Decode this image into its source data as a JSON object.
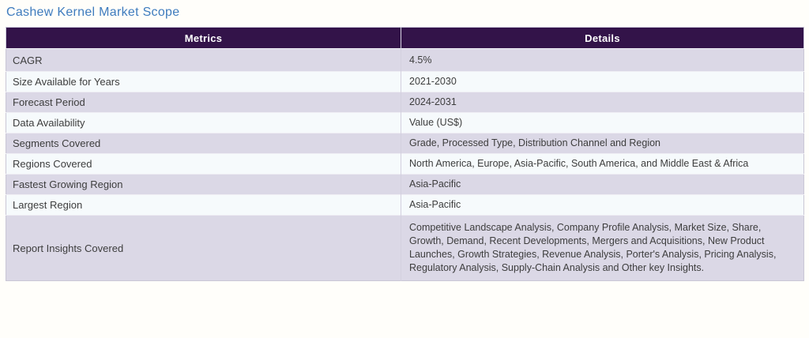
{
  "page": {
    "title": "Cashew Kernel Market Scope"
  },
  "colors": {
    "title_text": "#3f7cbe",
    "header_bg": "#331349",
    "header_text": "#ffffff",
    "row_alt_bg": "#dbd8e6",
    "row_bg": "#f6fafc",
    "cell_text": "#3d3d3d"
  },
  "table": {
    "headers": [
      "Metrics",
      "Details"
    ],
    "rows": [
      {
        "metric": "CAGR",
        "detail": "4.5%"
      },
      {
        "metric": "Size Available for Years",
        "detail": "2021-2030"
      },
      {
        "metric": "Forecast Period",
        "detail": "2024-2031"
      },
      {
        "metric": "Data Availability",
        "detail": "Value (US$)"
      },
      {
        "metric": "Segments Covered",
        "detail": "Grade, Processed Type, Distribution Channel and Region"
      },
      {
        "metric": "Regions Covered",
        "detail": "North America, Europe, Asia-Pacific, South America, and Middle East & Africa"
      },
      {
        "metric": "Fastest Growing Region",
        "detail": "Asia-Pacific"
      },
      {
        "metric": "Largest Region",
        "detail": "Asia-Pacific"
      },
      {
        "metric": "Report Insights Covered",
        "detail": "Competitive Landscape Analysis, Company Profile Analysis, Market Size, Share, Growth, Demand, Recent Developments, Mergers and Acquisitions, New Product Launches, Growth Strategies, Revenue Analysis, Porter's Analysis, Pricing Analysis, Regulatory Analysis, Supply-Chain Analysis and Other key Insights."
      }
    ]
  }
}
